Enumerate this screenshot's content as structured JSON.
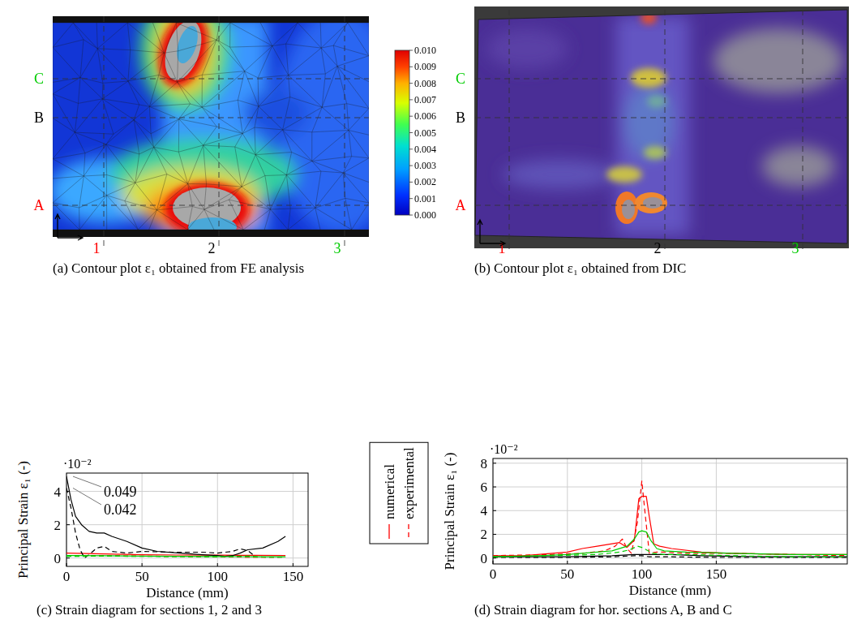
{
  "chart_data": [
    {
      "type": "contour",
      "caption": "(a) Contour plot ε₁ obtained from FE analysis",
      "colorbar": {
        "range": [
          0,
          0.01
        ],
        "ticks": [
          {
            "value": 0,
            "label": "0.000"
          },
          {
            "value": 0.001,
            "label": "0.001"
          },
          {
            "value": 0.002,
            "label": "0.002"
          },
          {
            "value": 0.003,
            "label": "0.003"
          },
          {
            "value": 0.004,
            "label": "0.004"
          },
          {
            "value": 0.005,
            "label": "0.005"
          },
          {
            "value": 0.006,
            "label": "0.006"
          },
          {
            "value": 0.007,
            "label": "0.007"
          },
          {
            "value": 0.008,
            "label": "0.008"
          },
          {
            "value": 0.009,
            "label": "0.009"
          },
          {
            "value": 0.01,
            "label": "0.010"
          }
        ]
      },
      "sections": {
        "horizontal": [
          {
            "label": "A",
            "color": "#ff0000"
          },
          {
            "label": "B",
            "color": "#000000"
          },
          {
            "label": "C",
            "color": "#00cc00"
          }
        ],
        "vertical": [
          {
            "label": "1",
            "color": "#ff0000"
          },
          {
            "label": "2",
            "color": "#000000"
          },
          {
            "label": "3",
            "color": "#00cc00"
          }
        ]
      }
    },
    {
      "type": "image",
      "caption": "(b) Contour plot ε₁ obtained from DIC",
      "sections": {
        "horizontal": [
          {
            "label": "A",
            "color": "#ff0000"
          },
          {
            "label": "B",
            "color": "#000000"
          },
          {
            "label": "C",
            "color": "#00cc00"
          }
        ],
        "vertical": [
          {
            "label": "1",
            "color": "#ff0000"
          },
          {
            "label": "2",
            "color": "#000000"
          },
          {
            "label": "3",
            "color": "#00cc00"
          }
        ]
      }
    },
    {
      "type": "line",
      "caption": "(c) Strain diagram for sections 1, 2 and 3",
      "x_label": "Distance (mm)",
      "y_label": "Principal Strain ε₁ (-)",
      "y_multiplier": "·10⁻²",
      "xlim": [
        0,
        160
      ],
      "ylim": [
        -0.005,
        0.051
      ],
      "xticks": [
        0,
        50,
        100,
        150
      ],
      "yticks": [
        {
          "value": 0,
          "label": "0"
        },
        {
          "value": 0.02,
          "label": "2"
        },
        {
          "value": 0.04,
          "label": "4"
        }
      ],
      "grid": true,
      "annotations": [
        {
          "value": 0.049,
          "label": "0.049"
        },
        {
          "value": 0.042,
          "label": "0.042"
        }
      ],
      "series": [
        {
          "color": "#ff0000",
          "line_style": "solid",
          "x": [
            0,
            25,
            50,
            75,
            100,
            125,
            145
          ],
          "values": [
            0.003,
            0.0025,
            0.002,
            0.0018,
            0.0017,
            0.0016,
            0.0015
          ]
        },
        {
          "color": "#ff0000",
          "line_style": "dashed",
          "x": [
            0,
            25,
            50,
            75,
            100,
            125,
            145
          ],
          "values": [
            0.0015,
            0.0015,
            0.0012,
            0.001,
            0.0008,
            0.0005,
            0.0006
          ]
        },
        {
          "color": "#000000",
          "line_style": "solid",
          "x": [
            0,
            3,
            6,
            10,
            15,
            20,
            25,
            30,
            40,
            50,
            60,
            75,
            90,
            100,
            105,
            110,
            115,
            120,
            130,
            140,
            145
          ],
          "values": [
            0.049,
            0.035,
            0.025,
            0.02,
            0.016,
            0.015,
            0.015,
            0.013,
            0.01,
            0.006,
            0.004,
            0.003,
            0.002,
            0.0015,
            0.001,
            0.0015,
            0.003,
            0.005,
            0.006,
            0.01,
            0.013
          ]
        },
        {
          "color": "#000000",
          "line_style": "dashed",
          "x": [
            0,
            3,
            6,
            9,
            12,
            15,
            20,
            25,
            30,
            40,
            50,
            70,
            90,
            100,
            110,
            115,
            120,
            125
          ],
          "values": [
            0.042,
            0.03,
            0.015,
            0.005,
            0,
            0.002,
            0.006,
            0.007,
            0.004,
            0.003,
            0.004,
            0.0035,
            0.0035,
            0.003,
            0.004,
            0.0055,
            0.0045,
            0.001
          ]
        },
        {
          "color": "#00cc00",
          "line_style": "solid",
          "x": [
            0,
            25,
            50,
            75,
            100,
            125,
            145
          ],
          "values": [
            0.0015,
            0.0014,
            0.0012,
            0.001,
            0.0009,
            0.0008,
            0.0008
          ]
        },
        {
          "color": "#00cc00",
          "line_style": "dashed",
          "x": [
            0,
            25,
            50,
            75,
            100,
            110,
            120,
            130,
            145
          ],
          "values": [
            0.001,
            0.0012,
            0.001,
            0.0009,
            0.0008,
            0.001,
            0.0012,
            0.0006,
            0.0005
          ]
        }
      ]
    },
    {
      "type": "line",
      "caption": "(d) Strain diagram for hor. sections A, B and C",
      "x_label": "Distance (mm)",
      "y_label": "Principal Strain ε₁ (-)",
      "y_multiplier": "·10⁻²",
      "xlim": [
        0,
        238
      ],
      "ylim": [
        -0.005,
        0.084
      ],
      "xticks": [
        0,
        50,
        100,
        150
      ],
      "yticks": [
        {
          "value": 0,
          "label": "0"
        },
        {
          "value": 0.02,
          "label": "2"
        },
        {
          "value": 0.04,
          "label": "4"
        },
        {
          "value": 0.06,
          "label": "6"
        },
        {
          "value": 0.08,
          "label": "8"
        }
      ],
      "grid": true,
      "series": [
        {
          "color": "#ff0000",
          "line_style": "solid",
          "x": [
            0,
            20,
            30,
            40,
            50,
            60,
            70,
            80,
            85,
            90,
            95,
            98,
            100,
            103,
            105,
            108,
            112,
            120,
            140,
            160,
            200,
            238
          ],
          "values": [
            0.002,
            0.002,
            0.003,
            0.004,
            0.005,
            0.008,
            0.01,
            0.012,
            0.013,
            0.009,
            0.015,
            0.05,
            0.052,
            0.052,
            0.035,
            0.012,
            0.01,
            0.008,
            0.005,
            0.004,
            0.003,
            0.003
          ]
        },
        {
          "color": "#ff0000",
          "line_style": "dashed",
          "x": [
            0,
            40,
            60,
            75,
            82,
            87,
            90,
            93,
            97,
            100,
            102,
            105,
            110,
            115,
            130,
            160,
            200,
            238
          ],
          "values": [
            0.002,
            0.003,
            0.004,
            0.006,
            0.01,
            0.016,
            0.008,
            0.004,
            0.03,
            0.065,
            0.04,
            0.004,
            0.005,
            0.005,
            0.004,
            0.004,
            0.003,
            0.002
          ]
        },
        {
          "color": "#000000",
          "line_style": "solid",
          "x": [
            0,
            50,
            80,
            95,
            100,
            110,
            120,
            140,
            180,
            238
          ],
          "values": [
            0.001,
            0.001,
            0.002,
            0.003,
            0.003,
            0.003,
            0.003,
            0.002,
            0.001,
            0.001
          ]
        },
        {
          "color": "#000000",
          "line_style": "dashed",
          "x": [
            0,
            50,
            80,
            95,
            100,
            105,
            120,
            150,
            200,
            238
          ],
          "values": [
            0.0005,
            0.0005,
            0.001,
            0.002,
            0.002,
            0.001,
            0.001,
            0.0005,
            0.0005,
            0.0005
          ]
        },
        {
          "color": "#00cc00",
          "line_style": "solid",
          "x": [
            0,
            30,
            50,
            70,
            80,
            90,
            95,
            98,
            100,
            103,
            106,
            110,
            115,
            130,
            160,
            200,
            238
          ],
          "values": [
            0.001,
            0.002,
            0.003,
            0.005,
            0.006,
            0.01,
            0.016,
            0.022,
            0.023,
            0.022,
            0.015,
            0.008,
            0.006,
            0.005,
            0.004,
            0.003,
            0.003
          ]
        },
        {
          "color": "#00cc00",
          "line_style": "dashed",
          "x": [
            0,
            40,
            70,
            85,
            92,
            97,
            100,
            103,
            107,
            115,
            130,
            160,
            200,
            238
          ],
          "values": [
            0.001,
            0.002,
            0.003,
            0.005,
            0.007,
            0.01,
            0.009,
            0.007,
            0.004,
            0.003,
            0.003,
            0.002,
            0.001,
            0.001
          ]
        }
      ]
    }
  ],
  "legend_entries": [
    {
      "label": "numerical",
      "line_style": "solid",
      "color": "#ff0000"
    },
    {
      "label": "experimental",
      "line_style": "dashed",
      "color": "#ff0000"
    }
  ]
}
